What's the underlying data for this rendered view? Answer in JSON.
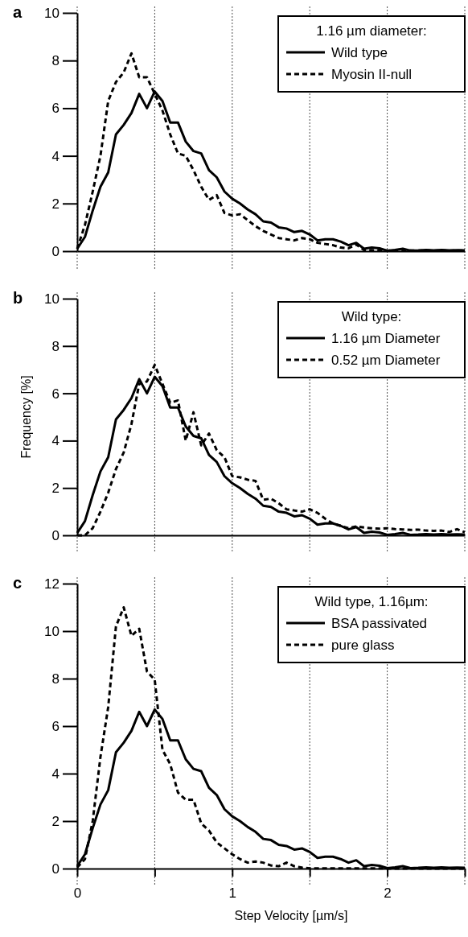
{
  "chart_data": [
    {
      "type": "line",
      "title": "a",
      "legend_title": "1.16 µm diameter:",
      "legend": "top right",
      "grid": "x",
      "tick_labels": "y",
      "x": [
        0,
        0.05,
        0.1,
        0.15,
        0.2,
        0.25,
        0.3,
        0.35,
        0.4,
        0.45,
        0.5,
        0.55,
        0.6,
        0.65,
        0.7,
        0.75,
        0.8,
        0.85,
        0.9,
        0.95,
        1.0,
        1.05,
        1.1,
        1.15,
        1.2,
        1.25,
        1.3,
        1.35,
        1.4,
        1.45,
        1.5,
        1.55,
        1.6,
        1.65,
        1.7,
        1.75,
        1.8,
        1.85,
        1.9,
        1.95,
        2.0,
        2.05,
        2.1,
        2.15,
        2.2,
        2.25,
        2.3,
        2.35,
        2.4,
        2.45,
        2.5
      ],
      "xlim": [
        0,
        2.5
      ],
      "xticks": [
        0,
        {
          "value": 0.5,
          "label": null
        },
        1,
        {
          "value": 1.5,
          "label": null
        },
        2,
        {
          "value": 2.5,
          "label": null
        }
      ],
      "ylim": [
        0,
        10
      ],
      "yticks": [
        0,
        2,
        4,
        6,
        8,
        10
      ],
      "series": [
        {
          "name": "Wild type",
          "color": "#000000",
          "line_style": "solid",
          "values": [
            0.1,
            0.6,
            1.7,
            2.7,
            3.3,
            4.9,
            5.3,
            5.8,
            6.6,
            6.0,
            6.7,
            6.3,
            5.4,
            5.4,
            4.6,
            4.2,
            4.1,
            3.4,
            3.1,
            2.5,
            2.2,
            2.0,
            1.75,
            1.55,
            1.25,
            1.2,
            1.0,
            0.95,
            0.8,
            0.85,
            0.7,
            0.45,
            0.5,
            0.5,
            0.4,
            0.25,
            0.35,
            0.1,
            0.15,
            0.12,
            0.02,
            0.05,
            0.1,
            0.02,
            0.03,
            0.05,
            0.03,
            0.05,
            0.03,
            0.04,
            0.03
          ]
        },
        {
          "name": "Myosin II-null",
          "color": "#000000",
          "line_style": "dashed",
          "values": [
            0.1,
            1.1,
            2.5,
            4.0,
            6.3,
            7.1,
            7.5,
            8.3,
            7.3,
            7.3,
            6.6,
            5.9,
            4.9,
            4.1,
            4.0,
            3.4,
            2.7,
            2.15,
            2.35,
            1.6,
            1.5,
            1.55,
            1.3,
            1.05,
            0.85,
            0.7,
            0.55,
            0.5,
            0.45,
            0.55,
            0.5,
            0.35,
            0.3,
            0.25,
            0.15,
            0.12,
            0.28,
            0.05,
            0.04,
            0.03,
            0.02,
            0.03,
            0.02,
            0.03,
            0.02,
            0.03,
            0.02,
            0.03,
            0.02,
            0.03,
            0.02
          ]
        }
      ]
    },
    {
      "type": "line",
      "title": "b",
      "ylabel": "Frequency [%]",
      "legend_title": "Wild type:",
      "legend": "top right",
      "grid": "x",
      "tick_labels": "y",
      "x": [
        0,
        0.05,
        0.1,
        0.15,
        0.2,
        0.25,
        0.3,
        0.35,
        0.4,
        0.45,
        0.5,
        0.55,
        0.6,
        0.65,
        0.7,
        0.75,
        0.8,
        0.85,
        0.9,
        0.95,
        1.0,
        1.05,
        1.1,
        1.15,
        1.2,
        1.25,
        1.3,
        1.35,
        1.4,
        1.45,
        1.5,
        1.55,
        1.6,
        1.65,
        1.7,
        1.75,
        1.8,
        1.85,
        1.9,
        1.95,
        2.0,
        2.05,
        2.1,
        2.15,
        2.2,
        2.25,
        2.3,
        2.35,
        2.4,
        2.45,
        2.5
      ],
      "xlim": [
        0,
        2.5
      ],
      "xticks": [
        0,
        {
          "value": 0.5,
          "label": null
        },
        1,
        {
          "value": 1.5,
          "label": null
        },
        2,
        {
          "value": 2.5,
          "label": null
        }
      ],
      "ylim": [
        0,
        10
      ],
      "yticks": [
        0,
        2,
        4,
        6,
        8,
        10
      ],
      "series": [
        {
          "name": "1.16 µm Diameter",
          "color": "#000000",
          "line_style": "solid",
          "values": [
            0.1,
            0.6,
            1.7,
            2.7,
            3.3,
            4.9,
            5.3,
            5.8,
            6.6,
            6.0,
            6.7,
            6.3,
            5.4,
            5.4,
            4.6,
            4.2,
            4.1,
            3.4,
            3.1,
            2.5,
            2.2,
            2.0,
            1.75,
            1.55,
            1.25,
            1.2,
            1.0,
            0.95,
            0.8,
            0.85,
            0.7,
            0.45,
            0.5,
            0.5,
            0.4,
            0.25,
            0.35,
            0.1,
            0.15,
            0.12,
            0.02,
            0.05,
            0.1,
            0.02,
            0.03,
            0.05,
            0.03,
            0.05,
            0.03,
            0.04,
            0.03
          ]
        },
        {
          "name": "0.52 µm Diameter",
          "color": "#000000",
          "line_style": "dashed",
          "values": [
            0,
            0,
            0.3,
            1.0,
            1.8,
            2.8,
            3.5,
            4.7,
            6.4,
            6.5,
            7.2,
            6.4,
            5.6,
            5.7,
            4.0,
            5.2,
            3.8,
            4.3,
            3.6,
            3.3,
            2.5,
            2.45,
            2.35,
            2.3,
            1.5,
            1.55,
            1.35,
            1.1,
            1.05,
            1.0,
            1.1,
            0.95,
            0.7,
            0.5,
            0.4,
            0.3,
            0.38,
            0.33,
            0.3,
            0.28,
            0.3,
            0.26,
            0.25,
            0.23,
            0.24,
            0.2,
            0.19,
            0.2,
            0.14,
            0.26,
            0.13
          ]
        }
      ]
    },
    {
      "type": "line",
      "title": "c",
      "xlabel": "Step Velocity [µm/s]",
      "legend_title": "Wild type, 1.16µm:",
      "legend": "top right",
      "grid": "x",
      "x": [
        0,
        0.05,
        0.1,
        0.15,
        0.2,
        0.25,
        0.3,
        0.35,
        0.4,
        0.45,
        0.5,
        0.55,
        0.6,
        0.65,
        0.7,
        0.75,
        0.8,
        0.85,
        0.9,
        0.95,
        1.0,
        1.05,
        1.1,
        1.15,
        1.2,
        1.25,
        1.3,
        1.35,
        1.4,
        1.45,
        1.5,
        1.55,
        1.6,
        1.65,
        1.7,
        1.75,
        1.8,
        1.85,
        1.9,
        1.95,
        2.0,
        2.05,
        2.1,
        2.15,
        2.2,
        2.25,
        2.3,
        2.35,
        2.4,
        2.45,
        2.5
      ],
      "xlim": [
        0,
        2.5
      ],
      "xticks": [
        0,
        {
          "value": 0.5,
          "label": null
        },
        1,
        {
          "value": 1.5,
          "label": null
        },
        2,
        {
          "value": 2.5,
          "label": null
        }
      ],
      "ylim": [
        0,
        12
      ],
      "yticks": [
        0,
        2,
        4,
        6,
        8,
        10,
        12
      ],
      "series": [
        {
          "name": "BSA passivated",
          "color": "#000000",
          "line_style": "solid",
          "values": [
            0.1,
            0.6,
            1.7,
            2.7,
            3.3,
            4.9,
            5.3,
            5.8,
            6.6,
            6.0,
            6.7,
            6.3,
            5.4,
            5.4,
            4.6,
            4.2,
            4.1,
            3.4,
            3.1,
            2.5,
            2.2,
            2.0,
            1.75,
            1.55,
            1.25,
            1.2,
            1.0,
            0.95,
            0.8,
            0.85,
            0.7,
            0.45,
            0.5,
            0.5,
            0.4,
            0.25,
            0.35,
            0.1,
            0.15,
            0.12,
            0.02,
            0.05,
            0.1,
            0.02,
            0.03,
            0.05,
            0.03,
            0.05,
            0.03,
            0.04,
            0.03
          ]
        },
        {
          "name": "pure glass",
          "color": "#000000",
          "line_style": "dashed",
          "values": [
            0.05,
            0.4,
            2.0,
            4.7,
            6.8,
            10.2,
            11.0,
            9.8,
            10.1,
            8.3,
            7.95,
            5.0,
            4.4,
            3.2,
            2.9,
            2.9,
            1.9,
            1.6,
            1.1,
            0.85,
            0.6,
            0.4,
            0.25,
            0.3,
            0.25,
            0.13,
            0.1,
            0.25,
            0.1,
            0.04,
            0.01,
            0.01,
            0.01,
            0.01,
            0.01,
            0.01,
            0.01,
            0.01,
            0.01,
            0.01,
            0,
            0,
            0,
            0,
            0,
            0,
            0,
            0,
            0,
            0,
            0
          ]
        }
      ]
    }
  ]
}
